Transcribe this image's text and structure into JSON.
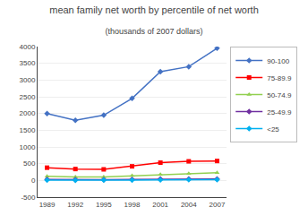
{
  "chart_data": {
    "type": "line",
    "title": "mean family net worth by percentile of net worth",
    "subtitle": "(thousands of 2007 dollars)",
    "x": [
      1989,
      1992,
      1995,
      1998,
      2001,
      2004,
      2007
    ],
    "xlim": [
      1988,
      2008
    ],
    "xticks": [
      1989,
      1992,
      1995,
      1998,
      2001,
      2004,
      2007
    ],
    "ylim": [
      -500,
      4000
    ],
    "yticks": [
      -500,
      0,
      500,
      1000,
      1500,
      2000,
      2500,
      3000,
      3500,
      4000
    ],
    "grid": "y",
    "legend": "right",
    "series": [
      {
        "name": "90-100",
        "color": "#4472C4",
        "marker": "diamond",
        "values": [
          2000,
          1800,
          1950,
          2450,
          3250,
          3400,
          3950
        ]
      },
      {
        "name": "75-89.9",
        "color": "#FF0000",
        "marker": "square",
        "values": [
          380,
          340,
          330,
          420,
          530,
          570,
          580
        ]
      },
      {
        "name": "50-74.9",
        "color": "#92D050",
        "marker": "triangle-up",
        "values": [
          120,
          100,
          105,
          140,
          175,
          200,
          230
        ]
      },
      {
        "name": "25-49.9",
        "color": "#7030A0",
        "marker": "diamond",
        "values": [
          30,
          20,
          25,
          30,
          40,
          45,
          45
        ]
      },
      {
        "name": "<25",
        "color": "#00B0F0",
        "marker": "diamond",
        "values": [
          10,
          5,
          8,
          12,
          15,
          20,
          20
        ]
      }
    ]
  }
}
